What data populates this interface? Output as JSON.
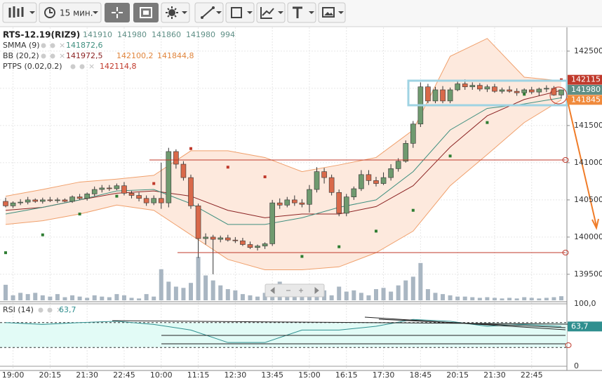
{
  "toolbar": {
    "timeframe": "15 мин."
  },
  "chart_data": {
    "type": "candlestick",
    "title": "RTS-12.19(RIZ9)",
    "categories": [
      null,
      "19:00",
      null,
      null,
      null,
      null,
      "20:15",
      null,
      null,
      null,
      null,
      "21:30",
      null,
      null,
      null,
      null,
      "22:45",
      null,
      null,
      null,
      null,
      "10:00",
      null,
      null,
      null,
      null,
      "11:15",
      null,
      null,
      null,
      null,
      "12:30",
      null,
      null,
      null,
      null,
      "13:45",
      null,
      null,
      null,
      null,
      "15:00",
      null,
      null,
      null,
      null,
      "16:15",
      null,
      null,
      null,
      null,
      "17:30",
      null,
      null,
      null,
      null,
      "18:45",
      null,
      null,
      null,
      null,
      "20:15",
      null,
      null,
      null,
      null,
      "21:30",
      null,
      null,
      null,
      null,
      "22:45",
      null,
      null,
      null,
      null
    ],
    "open": [
      140480,
      140420,
      140460,
      140470,
      140500,
      140480,
      140500,
      140490,
      140500,
      140480,
      140540,
      140520,
      140580,
      140640,
      140660,
      140650,
      140690,
      140590,
      140560,
      140520,
      140460,
      140520,
      140460,
      141150,
      140980,
      140800,
      140420,
      139980,
      140000,
      139970,
      139990,
      139960,
      139950,
      139900,
      139860,
      139880,
      139910,
      140460,
      140430,
      140500,
      140460,
      140440,
      140640,
      140880,
      140800,
      140600,
      140320,
      140540,
      140650,
      140840,
      140760,
      140720,
      140800,
      140920,
      141020,
      141260,
      141520,
      142020,
      141830,
      141980,
      141830,
      141980,
      142060,
      142020,
      142040,
      141990,
      142020,
      141960,
      141980,
      141960,
      141940,
      141980,
      141950,
      141990,
      142000,
      141910
    ],
    "high": [
      140530,
      140480,
      140510,
      140540,
      140520,
      140530,
      140540,
      140530,
      140520,
      140560,
      140580,
      140600,
      140680,
      140700,
      140700,
      140720,
      140740,
      140620,
      140600,
      140560,
      140560,
      141000,
      141200,
      141180,
      141020,
      140840,
      140450,
      140050,
      140030,
      140020,
      140030,
      140000,
      139990,
      139940,
      139900,
      139930,
      140500,
      140520,
      140540,
      140560,
      140510,
      140700,
      140940,
      140930,
      140840,
      140640,
      140580,
      140680,
      140900,
      140900,
      140810,
      140870,
      140980,
      141060,
      141300,
      141560,
      142080,
      142060,
      142020,
      142030,
      142010,
      142100,
      142120,
      142080,
      142070,
      142050,
      142060,
      142010,
      142030,
      142000,
      142000,
      142020,
      142010,
      142040,
      142030,
      141980
    ],
    "low": [
      140400,
      140390,
      140430,
      140440,
      140460,
      140450,
      140470,
      140460,
      140470,
      140460,
      140500,
      140490,
      140550,
      140600,
      140620,
      140630,
      140560,
      140520,
      140480,
      140420,
      140430,
      140380,
      140400,
      140920,
      140760,
      140380,
      139720,
      139900,
      139500,
      139930,
      139940,
      139920,
      139880,
      139840,
      139820,
      139840,
      139880,
      140380,
      140400,
      140420,
      140400,
      140330,
      140600,
      140720,
      140560,
      140280,
      140280,
      140500,
      140620,
      140700,
      140680,
      140700,
      140760,
      140880,
      141000,
      141200,
      141480,
      141800,
      141800,
      141800,
      141800,
      141960,
      141980,
      141980,
      141960,
      141950,
      141940,
      141930,
      141940,
      141900,
      141910,
      141920,
      141900,
      141950,
      141900,
      141860
    ],
    "close": [
      140420,
      140460,
      140470,
      140500,
      140480,
      140500,
      140490,
      140500,
      140480,
      140540,
      140520,
      140580,
      140640,
      140660,
      140650,
      140690,
      140590,
      140560,
      140520,
      140460,
      140520,
      140460,
      141150,
      140980,
      140800,
      140420,
      139980,
      140000,
      139970,
      139990,
      139960,
      139950,
      139900,
      139860,
      139880,
      139910,
      140460,
      140430,
      140500,
      140460,
      140440,
      140640,
      140880,
      140800,
      140600,
      140320,
      140540,
      140650,
      140840,
      140760,
      140720,
      140800,
      140920,
      141020,
      141260,
      141520,
      142020,
      141830,
      141980,
      141830,
      141980,
      142060,
      142020,
      142040,
      141990,
      142020,
      141960,
      141980,
      141960,
      141940,
      141980,
      141950,
      141990,
      142000,
      141910,
      141980
    ],
    "volume": [
      3750,
      1200,
      1800,
      1500,
      1800,
      1200,
      900,
      1500,
      750,
      1200,
      900,
      600,
      1200,
      900,
      750,
      1500,
      1200,
      600,
      450,
      1500,
      900,
      7500,
      4500,
      3300,
      3000,
      4200,
      10500,
      6000,
      4800,
      3600,
      2700,
      2400,
      1500,
      1200,
      900,
      1800,
      3300,
      4500,
      1800,
      2400,
      2100,
      1500,
      1800,
      2400,
      1200,
      3300,
      2100,
      2400,
      1800,
      1200,
      2700,
      3000,
      2100,
      3600,
      4800,
      5700,
      9000,
      2700,
      1800,
      1500,
      1200,
      900,
      900,
      750,
      600,
      750,
      600,
      450,
      600,
      450,
      750,
      600,
      450,
      600,
      750,
      994
    ],
    "up_color": "#6f9a6f",
    "down_color": "#d9694a",
    "volume_color": "#a9b6c2",
    "close_tag": "141980",
    "close_tag_color": "#5f8f86",
    "ylim": [
      139150,
      142810
    ],
    "yticks": [
      139500,
      140000,
      140500,
      141000,
      141500,
      142000,
      142500
    ],
    "grid": true,
    "x": [
      0,
      5,
      10,
      15,
      20,
      25,
      30,
      35,
      40,
      45,
      50,
      55,
      60,
      65,
      70,
      75
    ],
    "smma": {
      "name": "SMMA (9)",
      "color": "#3f8f7f",
      "value_label": "141872,6",
      "values": [
        140310,
        140400,
        140500,
        140620,
        140640,
        140450,
        140170,
        140170,
        140260,
        140400,
        140500,
        140880,
        141440,
        141730,
        141790,
        141872.6
      ]
    },
    "bb": {
      "name": "BB (20,2)",
      "fill": "#fde9dd",
      "middle": {
        "color": "#8b2323",
        "value_label": "141972,5",
        "values": [
          140360,
          140400,
          140500,
          140590,
          140620,
          140550,
          140360,
          140260,
          140310,
          140310,
          140410,
          140690,
          141210,
          141630,
          141850,
          141972.5
        ]
      },
      "upper": {
        "color": "#f0a06c",
        "value_label": "142100,2",
        "values": [
          140550,
          140640,
          140740,
          140780,
          140830,
          141160,
          141160,
          141070,
          140880,
          140970,
          141070,
          141440,
          142430,
          142670,
          142150,
          142100.2
        ]
      },
      "lower": {
        "color": "#f0a06c",
        "value_label": "141844,8",
        "tag": "141845",
        "values": [
          140170,
          140220,
          140310,
          140430,
          140360,
          140030,
          139700,
          139560,
          139560,
          139600,
          139790,
          140080,
          140690,
          141110,
          141540,
          141844.8
        ]
      }
    },
    "ptps": {
      "name": "PTPS (0.02,0.2)",
      "color": "#c0392b",
      "below_color": "#2e7d32",
      "value_label": "142114,8",
      "tag": "142115",
      "values": [
        139790,
        140030,
        140310,
        140550,
        140720,
        141190,
        140940,
        140810,
        139740,
        139870,
        140080,
        140360,
        141090,
        141540,
        141920,
        142114.8
      ]
    },
    "rsi": {
      "name": "RSI (14)",
      "color": "#2f8f8f",
      "fill": "#e2fbf6",
      "value_label": "63,7",
      "values": [
        70,
        67,
        70,
        72,
        67,
        58,
        38,
        38,
        58,
        58,
        64,
        75,
        72,
        64,
        67,
        63.7
      ],
      "ylim": [
        0,
        100
      ],
      "yticks": [
        {
          "value": 100,
          "label": "100,0"
        },
        0
      ],
      "levels": [
        70,
        30
      ]
    }
  }
}
